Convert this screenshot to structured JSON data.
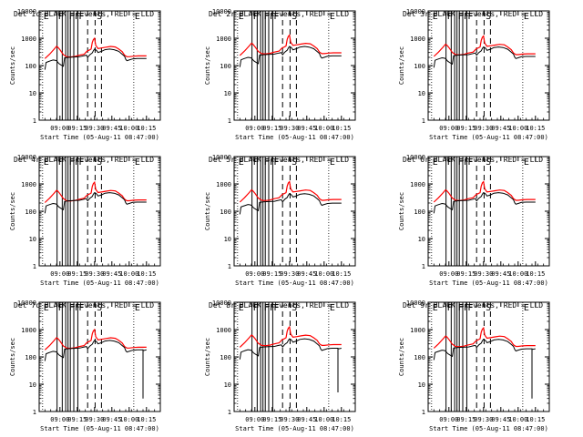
{
  "colors": {
    "events": "#000000",
    "lld": "#ff0000",
    "axes": "#000000",
    "background": "#ffffff"
  },
  "chart_data": [
    {
      "type": "line",
      "title": "Det 1c BLACK = Events, RED = LLD"
    },
    {
      "type": "line",
      "title": "Det 2r BLACK = Events, RED = LLD"
    },
    {
      "type": "line",
      "title": "Det 3r BLACK = Events, RED = LLD"
    },
    {
      "type": "line",
      "title": "Det 4r BLACK = Events, RED = LLD"
    },
    {
      "type": "line",
      "title": "Det 5r BLACK = Events, RED = LLD"
    },
    {
      "type": "line",
      "title": "Det 6r BLACK = Events, RED = LLD"
    },
    {
      "type": "line",
      "title": "Det 7c BLACK = Events, RED = LLD"
    },
    {
      "type": "line",
      "title": "Det 8r BLACK = Events, RED = LLD"
    },
    {
      "type": "line",
      "title": "Det 9r BLACK = Events, RED = LLD"
    }
  ],
  "shared": {
    "ylabel": "Counts/sec",
    "xlabel": "Start Time (05-Aug-11 08:47:00)",
    "yscale": "log",
    "ylim": [
      1,
      10000
    ],
    "yticks": [
      "1",
      "10",
      "100",
      "1000",
      "10000"
    ],
    "xlim_minutes": [
      -5,
      100
    ],
    "xticks": [
      {
        "label": "09:00",
        "min": 13
      },
      {
        "label": "09:15",
        "min": 28
      },
      {
        "label": "09:30",
        "min": 43
      },
      {
        "label": "09:45",
        "min": 58
      },
      {
        "label": "10:00",
        "min": 73
      },
      {
        "label": "10:15",
        "min": 88
      }
    ],
    "markers": [
      {
        "label": "E",
        "min": -2
      },
      {
        "label": "F",
        "min": 10.5
      },
      {
        "label": "F",
        "min": 20
      },
      {
        "label": "F",
        "min": 25
      },
      {
        "label": "F",
        "min": 28.5
      },
      {
        "label": "S",
        "min": 44
      },
      {
        "label": "E",
        "min": 77
      }
    ],
    "solid_vlines_min": [
      10.5,
      15,
      18,
      20,
      22,
      25,
      28.5
    ],
    "dashed_vlines_min": [
      37,
      43.5,
      49
    ],
    "dotted_vlines_min": [
      -2,
      77
    ],
    "events_curve": [
      {
        "t": 0,
        "v": 70
      },
      {
        "t": 1,
        "v": 130
      },
      {
        "t": 3,
        "v": 140
      },
      {
        "t": 5,
        "v": 150
      },
      {
        "t": 7,
        "v": 160
      },
      {
        "t": 9,
        "v": 155
      },
      {
        "t": 10,
        "v": 150
      },
      {
        "t": 12,
        "v": 120
      },
      {
        "t": 14,
        "v": 105
      },
      {
        "t": 16,
        "v": 95
      },
      {
        "t": 17,
        "v": 190
      },
      {
        "t": 20,
        "v": 200
      },
      {
        "t": 25,
        "v": 205
      },
      {
        "t": 30,
        "v": 210
      },
      {
        "t": 34,
        "v": 230
      },
      {
        "t": 36,
        "v": 240
      },
      {
        "t": 37,
        "v": 200
      },
      {
        "t": 39,
        "v": 250
      },
      {
        "t": 41,
        "v": 290
      },
      {
        "t": 42,
        "v": 350
      },
      {
        "t": 43,
        "v": 400
      },
      {
        "t": 44,
        "v": 380
      },
      {
        "t": 45,
        "v": 350
      },
      {
        "t": 46,
        "v": 300
      },
      {
        "t": 48,
        "v": 320
      },
      {
        "t": 49,
        "v": 330
      },
      {
        "t": 52,
        "v": 380
      },
      {
        "t": 56,
        "v": 400
      },
      {
        "t": 60,
        "v": 380
      },
      {
        "t": 64,
        "v": 330
      },
      {
        "t": 67,
        "v": 260
      },
      {
        "t": 69,
        "v": 220
      },
      {
        "t": 70,
        "v": 170
      },
      {
        "t": 71,
        "v": 150
      },
      {
        "t": 73,
        "v": 160
      },
      {
        "t": 76,
        "v": 175
      },
      {
        "t": 80,
        "v": 180
      },
      {
        "t": 84,
        "v": 180
      },
      {
        "t": 88,
        "v": 180
      }
    ],
    "lld_curve": [
      {
        "t": 0,
        "v": 180
      },
      {
        "t": 4,
        "v": 260
      },
      {
        "t": 8,
        "v": 400
      },
      {
        "t": 10,
        "v": 500
      },
      {
        "t": 11,
        "v": 480
      },
      {
        "t": 13,
        "v": 380
      },
      {
        "t": 16,
        "v": 250
      },
      {
        "t": 19,
        "v": 210
      },
      {
        "t": 22,
        "v": 205
      },
      {
        "t": 26,
        "v": 215
      },
      {
        "t": 30,
        "v": 240
      },
      {
        "t": 34,
        "v": 260
      },
      {
        "t": 36,
        "v": 320
      },
      {
        "t": 37,
        "v": 350
      },
      {
        "t": 38,
        "v": 360
      },
      {
        "t": 40,
        "v": 400
      },
      {
        "t": 41,
        "v": 700
      },
      {
        "t": 42,
        "v": 900
      },
      {
        "t": 43,
        "v": 1000
      },
      {
        "t": 44,
        "v": 550
      },
      {
        "t": 46,
        "v": 420
      },
      {
        "t": 49,
        "v": 440
      },
      {
        "t": 53,
        "v": 470
      },
      {
        "t": 57,
        "v": 500
      },
      {
        "t": 61,
        "v": 480
      },
      {
        "t": 64,
        "v": 400
      },
      {
        "t": 67,
        "v": 320
      },
      {
        "t": 69,
        "v": 240
      },
      {
        "t": 71,
        "v": 210
      },
      {
        "t": 73,
        "v": 210
      },
      {
        "t": 77,
        "v": 220
      },
      {
        "t": 81,
        "v": 225
      },
      {
        "t": 85,
        "v": 225
      },
      {
        "t": 88,
        "v": 225
      }
    ]
  }
}
